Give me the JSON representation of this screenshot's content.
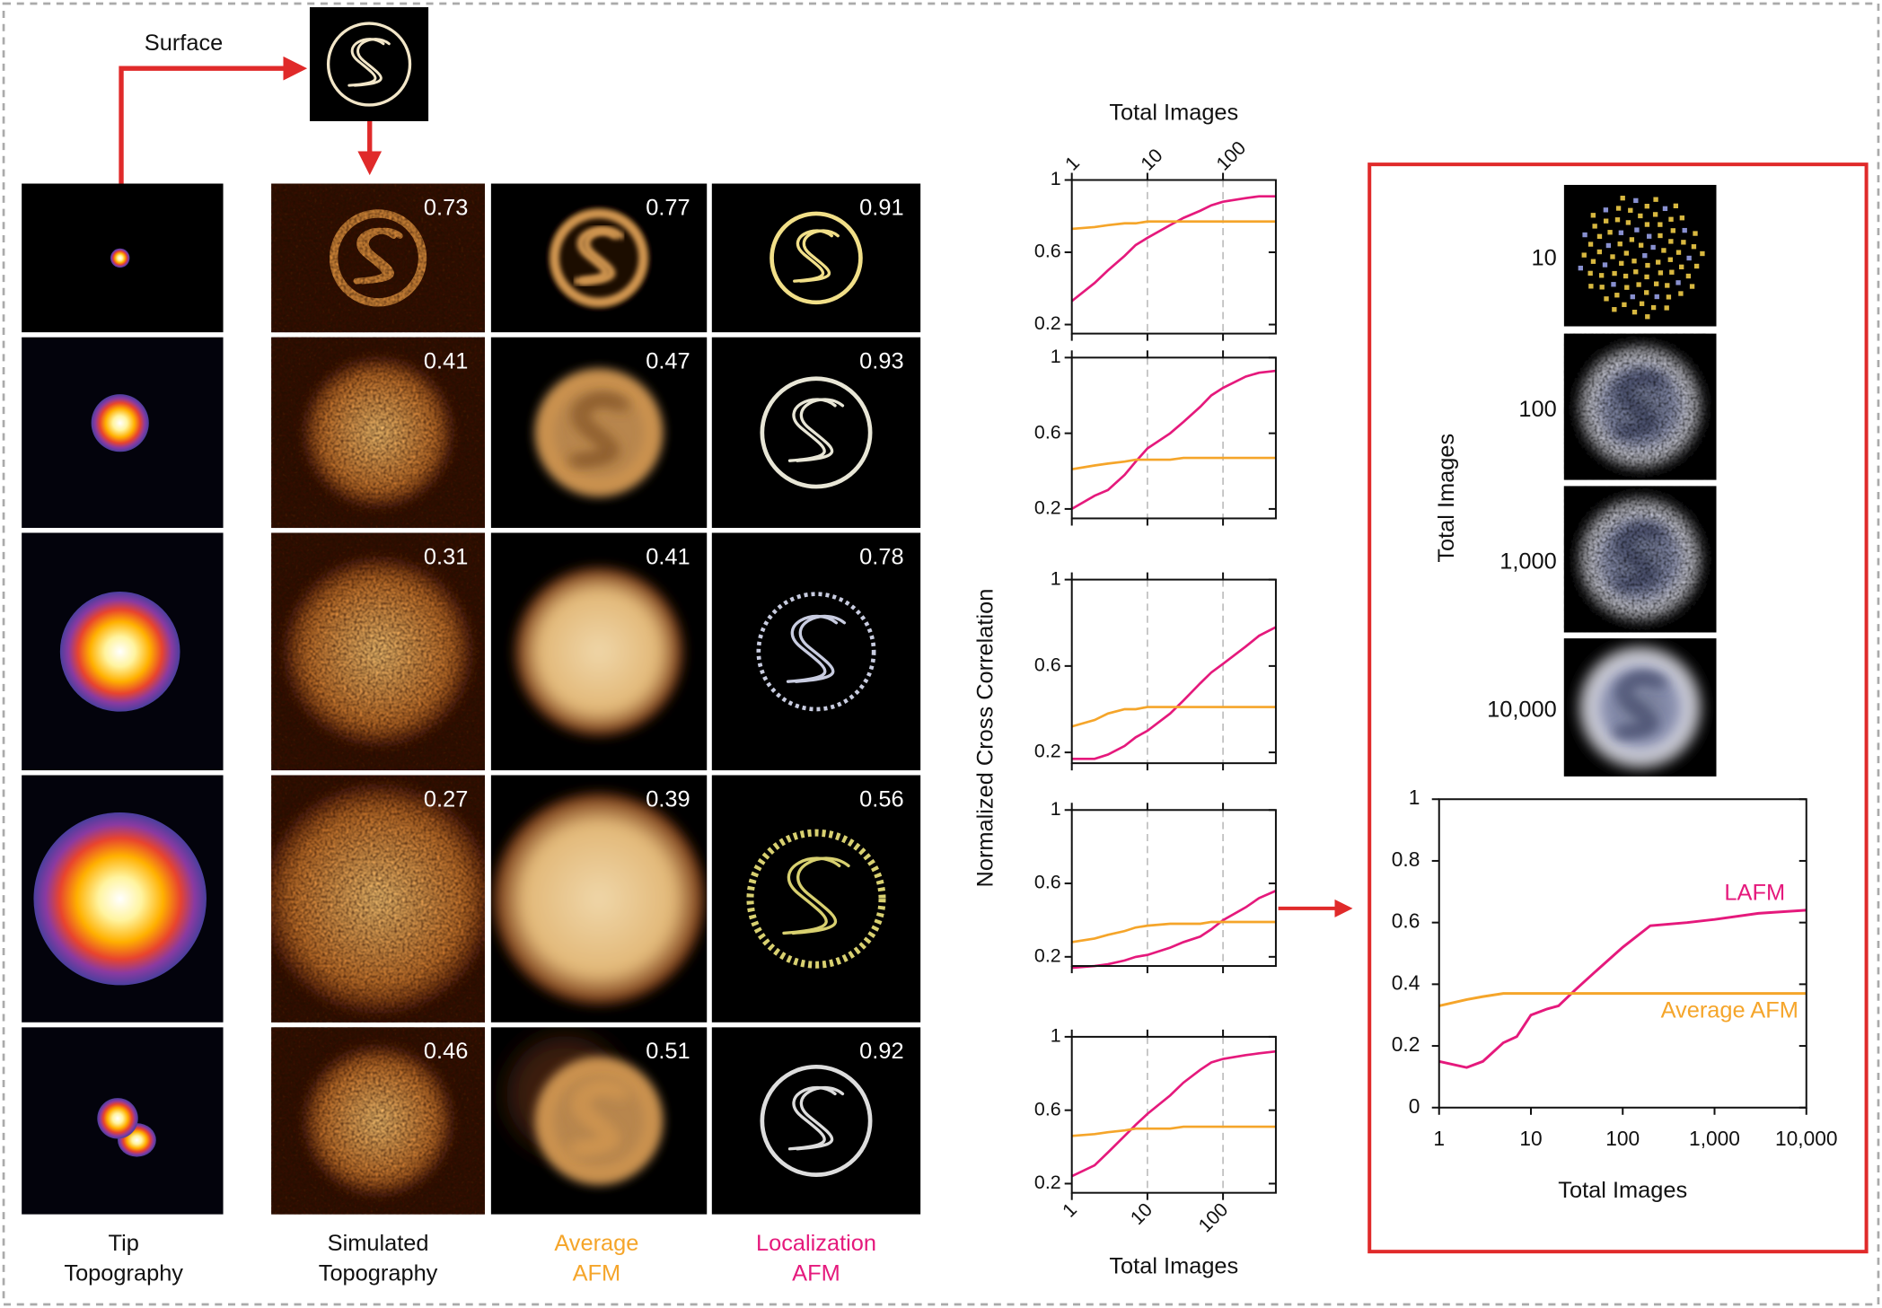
{
  "figure": {
    "surface_label": "Surface",
    "columns": [
      [
        "Tip",
        "Topography"
      ],
      [
        "Simulated",
        "Topography"
      ],
      [
        "Average",
        "AFM"
      ],
      [
        "Localization",
        "AFM"
      ]
    ],
    "scores": [
      [
        0.73,
        0.77,
        0.91
      ],
      [
        0.41,
        0.47,
        0.93
      ],
      [
        0.31,
        0.41,
        0.78
      ],
      [
        0.27,
        0.39,
        0.56
      ],
      [
        0.46,
        0.51,
        0.92
      ]
    ]
  },
  "inset": {
    "y_label": "Total Images",
    "image_labels": [
      10,
      100,
      {
        "value": 1000,
        "label": "1,000"
      },
      {
        "value": 10000,
        "label": "10,000"
      }
    ]
  },
  "chart_data": [
    {
      "type": "line",
      "xscale": "log",
      "x_label": "Total Images",
      "xtick_label_side": "top",
      "grid": "x",
      "xlim": [
        1,
        500
      ],
      "ylim": [
        0.15,
        1
      ],
      "xticks": [
        1,
        10,
        100
      ],
      "yticks": [
        0.2,
        0.6,
        1
      ],
      "x": [
        1,
        2,
        3,
        5,
        7,
        10,
        20,
        30,
        50,
        70,
        100,
        200,
        300,
        500
      ],
      "series": [
        {
          "color": "#e5197c",
          "values": [
            0.33,
            0.43,
            0.5,
            0.58,
            0.64,
            0.68,
            0.75,
            0.79,
            0.83,
            0.86,
            0.88,
            0.9,
            0.91,
            0.91
          ]
        },
        {
          "color": "#f5a52a",
          "values": [
            0.73,
            0.74,
            0.75,
            0.76,
            0.76,
            0.77,
            0.77,
            0.77,
            0.77,
            0.77,
            0.77,
            0.77,
            0.77,
            0.77
          ]
        }
      ]
    },
    {
      "type": "line",
      "xscale": "log",
      "grid": "x",
      "xlim": [
        1,
        500
      ],
      "ylim": [
        0.15,
        1
      ],
      "xticks": [
        1,
        10,
        100
      ],
      "yticks": [
        0.2,
        0.6,
        1
      ],
      "x": [
        1,
        2,
        3,
        5,
        7,
        10,
        20,
        30,
        50,
        70,
        100,
        200,
        300,
        500
      ],
      "series": [
        {
          "color": "#e5197c",
          "values": [
            0.2,
            0.27,
            0.3,
            0.38,
            0.45,
            0.52,
            0.6,
            0.66,
            0.74,
            0.8,
            0.84,
            0.9,
            0.92,
            0.93
          ]
        },
        {
          "color": "#f5a52a",
          "values": [
            0.41,
            0.43,
            0.44,
            0.45,
            0.46,
            0.46,
            0.46,
            0.47,
            0.47,
            0.47,
            0.47,
            0.47,
            0.47,
            0.47
          ]
        }
      ]
    },
    {
      "type": "line",
      "xscale": "log",
      "y_label": "Normalized Cross Correlation",
      "grid": "x",
      "xlim": [
        1,
        500
      ],
      "ylim": [
        0.15,
        1
      ],
      "xticks": [
        1,
        10,
        100
      ],
      "yticks": [
        0.2,
        0.6,
        1
      ],
      "x": [
        1,
        2,
        3,
        5,
        7,
        10,
        20,
        30,
        50,
        70,
        100,
        200,
        300,
        500
      ],
      "series": [
        {
          "color": "#e5197c",
          "values": [
            0.17,
            0.17,
            0.19,
            0.23,
            0.27,
            0.3,
            0.38,
            0.44,
            0.52,
            0.57,
            0.61,
            0.69,
            0.74,
            0.78
          ]
        },
        {
          "color": "#f5a52a",
          "values": [
            0.32,
            0.35,
            0.38,
            0.4,
            0.4,
            0.41,
            0.41,
            0.41,
            0.41,
            0.41,
            0.41,
            0.41,
            0.41,
            0.41
          ]
        }
      ]
    },
    {
      "type": "line",
      "xscale": "log",
      "grid": "x",
      "xlim": [
        1,
        500
      ],
      "ylim": [
        0.15,
        1
      ],
      "xticks": [
        1,
        10,
        100
      ],
      "yticks": [
        0.2,
        0.6,
        1
      ],
      "x": [
        1,
        2,
        3,
        5,
        7,
        10,
        20,
        30,
        50,
        70,
        100,
        200,
        300,
        500
      ],
      "series": [
        {
          "color": "#e5197c",
          "values": [
            0.14,
            0.15,
            0.16,
            0.18,
            0.2,
            0.21,
            0.25,
            0.28,
            0.31,
            0.35,
            0.4,
            0.47,
            0.52,
            0.56
          ]
        },
        {
          "color": "#f5a52a",
          "values": [
            0.28,
            0.3,
            0.32,
            0.34,
            0.36,
            0.37,
            0.38,
            0.38,
            0.38,
            0.39,
            0.39,
            0.39,
            0.39,
            0.39
          ]
        }
      ]
    },
    {
      "type": "line",
      "xscale": "log",
      "x_label": "Total Images",
      "xtick_label_side": "bottom",
      "grid": "x",
      "xlim": [
        1,
        500
      ],
      "ylim": [
        0.15,
        1
      ],
      "xticks": [
        1,
        10,
        100
      ],
      "yticks": [
        0.2,
        0.6,
        1
      ],
      "x": [
        1,
        2,
        3,
        5,
        7,
        10,
        20,
        30,
        50,
        70,
        100,
        200,
        300,
        500
      ],
      "series": [
        {
          "color": "#e5197c",
          "values": [
            0.24,
            0.3,
            0.37,
            0.46,
            0.52,
            0.58,
            0.68,
            0.75,
            0.82,
            0.86,
            0.88,
            0.9,
            0.91,
            0.92
          ]
        },
        {
          "color": "#f5a52a",
          "values": [
            0.46,
            0.47,
            0.48,
            0.49,
            0.5,
            0.5,
            0.5,
            0.51,
            0.51,
            0.51,
            0.51,
            0.51,
            0.51,
            0.51
          ]
        }
      ]
    },
    {
      "type": "line",
      "xscale": "log",
      "x_label": "Total Images",
      "xtick_label_side": "bottom",
      "xlim": [
        1,
        10000
      ],
      "ylim": [
        0,
        1
      ],
      "xticks": [
        1,
        10,
        100,
        {
          "value": 1000,
          "label": "1,000"
        },
        {
          "value": 10000,
          "label": "10,000"
        }
      ],
      "yticks": [
        0,
        0.2,
        0.4,
        0.6,
        0.8,
        1
      ],
      "x": [
        1,
        2,
        3,
        5,
        7,
        10,
        15,
        20,
        30,
        50,
        100,
        200,
        500,
        1000,
        3000,
        10000
      ],
      "series": [
        {
          "name": "LAFM",
          "color": "#e5197c",
          "values": [
            0.15,
            0.13,
            0.15,
            0.21,
            0.23,
            0.3,
            0.32,
            0.33,
            0.38,
            0.44,
            0.52,
            0.59,
            0.6,
            0.61,
            0.63,
            0.64
          ]
        },
        {
          "name": "Average AFM",
          "color": "#f5a52a",
          "values": [
            0.33,
            0.35,
            0.36,
            0.37,
            0.37,
            0.37,
            0.37,
            0.37,
            0.37,
            0.37,
            0.37,
            0.37,
            0.37,
            0.37,
            0.37,
            0.37
          ]
        }
      ]
    }
  ]
}
